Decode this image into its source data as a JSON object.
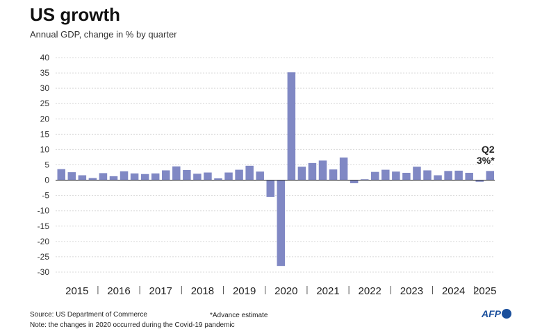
{
  "header": {
    "title": "US growth",
    "subtitle": "Annual GDP, change in % by quarter"
  },
  "footer": {
    "source": "Source: US Department of Commerce",
    "advance_note": "*Advance estimate",
    "note": "Note: the changes in 2020 occurred during the Covid-19 pandemic",
    "logo": "AFP"
  },
  "annotation": {
    "quarter": "Q2",
    "value": "3%*"
  },
  "colors": {
    "bar": "#8088c4",
    "grid": "#d8d8d8",
    "zero": "#333333",
    "logo": "#1a4f9c"
  },
  "chart_data": {
    "type": "bar",
    "title": "US growth",
    "subtitle": "Annual GDP, change in % by quarter",
    "xlabel": "",
    "ylabel": "",
    "ylim": [
      -30,
      40
    ],
    "yticks": [
      40,
      35,
      30,
      25,
      20,
      15,
      10,
      5,
      0,
      -5,
      -10,
      -15,
      -20,
      -25,
      -30
    ],
    "ytick_labels": [
      "40",
      "35",
      "30",
      "25",
      "20",
      "15",
      "10",
      "5",
      "0",
      "-5",
      "-10",
      "-15",
      "-20",
      "-25",
      "-30"
    ],
    "grid": true,
    "years": [
      "2015",
      "2016",
      "2017",
      "2018",
      "2019",
      "2020",
      "2021",
      "2022",
      "2023",
      "2024",
      "2025"
    ],
    "series": [
      {
        "values": [
          3.6,
          2.6,
          1.6,
          0.7,
          2.3,
          1.3,
          2.9,
          2.2,
          2.0,
          2.2,
          3.2,
          4.5,
          3.3,
          2.1,
          2.5,
          0.6,
          2.5,
          3.4,
          4.7,
          2.8,
          -5.5,
          -28.0,
          35.2,
          4.4,
          5.6,
          6.4,
          3.5,
          7.4,
          -1.0,
          0.3,
          2.7,
          3.4,
          2.8,
          2.4,
          4.4,
          3.2,
          1.6,
          3.0,
          3.1,
          2.4,
          -0.5,
          3.0
        ]
      }
    ]
  }
}
